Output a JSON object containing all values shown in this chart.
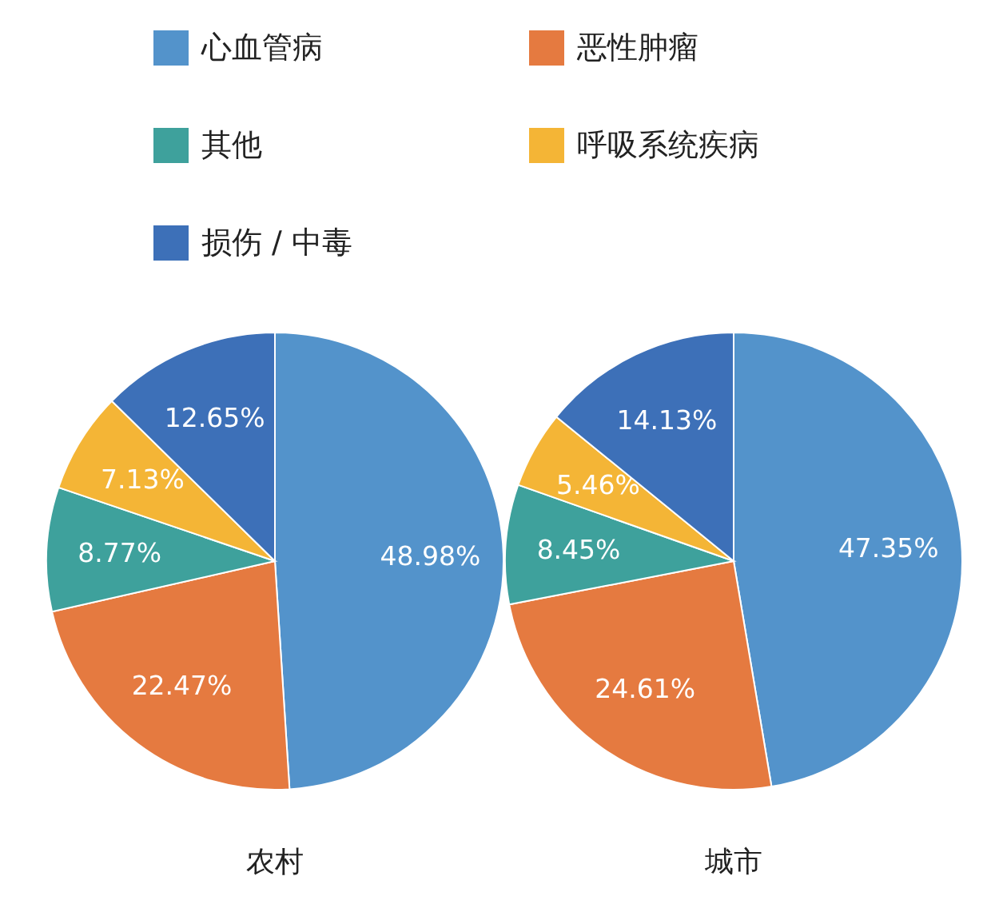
{
  "chart_data": [
    {
      "type": "pie",
      "title": "农村",
      "legend": "top",
      "categories": [
        "心血管病",
        "恶性肿瘤",
        "其他",
        "呼吸系统疾病",
        "损伤 / 中毒"
      ],
      "values": [
        48.98,
        22.47,
        8.77,
        7.13,
        12.65
      ],
      "value_labels": [
        "48.98%",
        "22.47%",
        "8.77%",
        "7.13%",
        "12.65%"
      ],
      "colors": [
        "#5393cb",
        "#e57a40",
        "#3ea19c",
        "#f4b536",
        "#3d70b8"
      ]
    },
    {
      "type": "pie",
      "title": "城市",
      "categories": [
        null,
        null,
        null,
        null,
        null
      ],
      "values": [
        47.35,
        24.61,
        8.45,
        5.46,
        14.13
      ],
      "value_labels": [
        "47.35%",
        "24.61%",
        "8.45%",
        "5.46%",
        "14.13%"
      ],
      "colors": [
        "#5393cb",
        "#e57a40",
        "#3ea19c",
        "#f4b536",
        "#3d70b8"
      ]
    }
  ]
}
